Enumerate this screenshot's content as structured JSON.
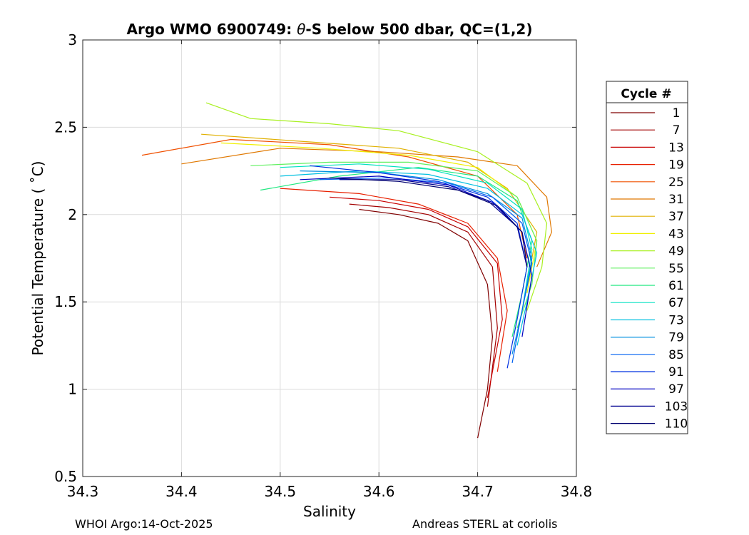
{
  "chart_data": {
    "type": "line",
    "title_prefix": "Argo WMO 6900749: ",
    "title_symbol": "θ",
    "title_suffix": "-S below 500 dbar,  QC=(1,2)",
    "xlabel": "Salinity",
    "ylabel": "Potential Temperature ( ˚C)",
    "xlim": [
      34.3,
      34.8
    ],
    "ylim": [
      0.5,
      3
    ],
    "xticks": [
      "34.3",
      "34.4",
      "34.5",
      "34.6",
      "34.7",
      "34.8"
    ],
    "yticks": [
      "0.5",
      "1",
      "1.5",
      "2",
      "2.5",
      "3"
    ],
    "grid": true,
    "legend": {
      "title": "Cycle #",
      "placement": "outside-right",
      "entries": [
        {
          "label": "1",
          "color": "#800000"
        },
        {
          "label": "7",
          "color": "#a30000"
        },
        {
          "label": "13",
          "color": "#c80000"
        },
        {
          "label": "19",
          "color": "#e82000"
        },
        {
          "label": "25",
          "color": "#f05000"
        },
        {
          "label": "31",
          "color": "#e07800"
        },
        {
          "label": "37",
          "color": "#e0b000"
        },
        {
          "label": "43",
          "color": "#f0f000"
        },
        {
          "label": "49",
          "color": "#a8f020"
        },
        {
          "label": "55",
          "color": "#60f060"
        },
        {
          "label": "61",
          "color": "#20e880"
        },
        {
          "label": "67",
          "color": "#00e0c0"
        },
        {
          "label": "73",
          "color": "#00c0e0"
        },
        {
          "label": "79",
          "color": "#0090e0"
        },
        {
          "label": "85",
          "color": "#0060f0"
        },
        {
          "label": "91",
          "color": "#0030e0"
        },
        {
          "label": "97",
          "color": "#0000c0"
        },
        {
          "label": "103",
          "color": "#000090"
        },
        {
          "label": "110",
          "color": "#000070"
        }
      ]
    },
    "series": [
      {
        "name": "1",
        "color": "#800000",
        "x": [
          34.58,
          34.62,
          34.66,
          34.69,
          34.71,
          34.715,
          34.71,
          34.7
        ],
        "y": [
          2.03,
          2.0,
          1.95,
          1.85,
          1.6,
          1.3,
          1.0,
          0.72
        ]
      },
      {
        "name": "7",
        "color": "#a30000",
        "x": [
          34.57,
          34.61,
          34.65,
          34.69,
          34.715,
          34.72,
          34.71
        ],
        "y": [
          2.06,
          2.04,
          2.0,
          1.9,
          1.7,
          1.35,
          0.9
        ]
      },
      {
        "name": "13",
        "color": "#c80000",
        "x": [
          34.55,
          34.6,
          34.65,
          34.69,
          34.72,
          34.725,
          34.71
        ],
        "y": [
          2.1,
          2.08,
          2.03,
          1.93,
          1.72,
          1.4,
          0.95
        ]
      },
      {
        "name": "19",
        "color": "#e82000",
        "x": [
          34.5,
          34.58,
          34.64,
          34.69,
          34.72,
          34.73,
          34.72
        ],
        "y": [
          2.15,
          2.12,
          2.06,
          1.95,
          1.75,
          1.45,
          1.1
        ]
      },
      {
        "name": "25",
        "color": "#f05000",
        "x": [
          34.36,
          34.45,
          34.55,
          34.63,
          34.7,
          34.74,
          34.75
        ],
        "y": [
          2.34,
          2.43,
          2.4,
          2.33,
          2.22,
          2.0,
          1.75
        ]
      },
      {
        "name": "31",
        "color": "#e07800",
        "x": [
          34.4,
          34.5,
          34.6,
          34.68,
          34.74,
          34.77,
          34.775,
          34.76
        ],
        "y": [
          2.29,
          2.38,
          2.36,
          2.33,
          2.28,
          2.1,
          1.9,
          1.7
        ]
      },
      {
        "name": "37",
        "color": "#e0b000",
        "x": [
          34.42,
          34.52,
          34.62,
          34.69,
          34.73,
          34.76,
          34.75
        ],
        "y": [
          2.46,
          2.42,
          2.38,
          2.3,
          2.15,
          1.9,
          1.6
        ]
      },
      {
        "name": "43",
        "color": "#f0f000",
        "x": [
          34.44,
          34.54,
          34.63,
          34.7,
          34.74,
          34.76,
          34.75
        ],
        "y": [
          2.41,
          2.38,
          2.34,
          2.27,
          2.1,
          1.85,
          1.55
        ]
      },
      {
        "name": "49",
        "color": "#a8f020",
        "x": [
          34.425,
          34.47,
          34.55,
          34.62,
          34.7,
          34.75,
          34.77,
          34.765,
          34.75
        ],
        "y": [
          2.64,
          2.55,
          2.52,
          2.48,
          2.36,
          2.18,
          1.95,
          1.7,
          1.45
        ]
      },
      {
        "name": "55",
        "color": "#60f060",
        "x": [
          34.47,
          34.55,
          34.63,
          34.7,
          34.74,
          34.76,
          34.755,
          34.74
        ],
        "y": [
          2.28,
          2.3,
          2.3,
          2.25,
          2.1,
          1.85,
          1.6,
          1.35
        ]
      },
      {
        "name": "61",
        "color": "#20e880",
        "x": [
          34.48,
          34.56,
          34.64,
          34.7,
          34.74,
          34.755,
          34.745,
          34.735
        ],
        "y": [
          2.14,
          2.22,
          2.27,
          2.22,
          2.08,
          1.85,
          1.55,
          1.3
        ]
      },
      {
        "name": "67",
        "color": "#00e0c0",
        "x": [
          34.5,
          34.58,
          34.65,
          34.71,
          34.745,
          34.755,
          34.745
        ],
        "y": [
          2.27,
          2.29,
          2.26,
          2.18,
          2.03,
          1.8,
          1.45
        ]
      },
      {
        "name": "73",
        "color": "#00c0e0",
        "x": [
          34.5,
          34.58,
          34.65,
          34.71,
          34.745,
          34.76,
          34.75,
          34.74
        ],
        "y": [
          2.22,
          2.25,
          2.23,
          2.15,
          2.0,
          1.78,
          1.5,
          1.25
        ]
      },
      {
        "name": "79",
        "color": "#0090e0",
        "x": [
          34.52,
          34.6,
          34.66,
          34.71,
          34.745,
          34.755,
          34.745,
          34.735
        ],
        "y": [
          2.25,
          2.24,
          2.2,
          2.12,
          1.98,
          1.75,
          1.45,
          1.2
        ]
      },
      {
        "name": "85",
        "color": "#0060f0",
        "x": [
          34.54,
          34.61,
          34.67,
          34.715,
          34.745,
          34.755,
          34.745,
          34.735
        ],
        "y": [
          2.2,
          2.21,
          2.18,
          2.1,
          1.95,
          1.72,
          1.45,
          1.15
        ]
      },
      {
        "name": "91",
        "color": "#0030e0",
        "x": [
          34.53,
          34.6,
          34.66,
          34.71,
          34.74,
          34.75,
          34.74,
          34.73
        ],
        "y": [
          2.28,
          2.24,
          2.19,
          2.1,
          1.95,
          1.7,
          1.4,
          1.12
        ]
      },
      {
        "name": "97",
        "color": "#0000c0",
        "x": [
          34.52,
          34.6,
          34.67,
          34.715,
          34.745,
          34.755,
          34.745
        ],
        "y": [
          2.2,
          2.22,
          2.17,
          2.07,
          1.9,
          1.65,
          1.3
        ]
      },
      {
        "name": "103",
        "color": "#000090",
        "x": [
          34.56,
          34.62,
          34.67,
          34.71,
          34.74,
          34.75
        ],
        "y": [
          2.2,
          2.2,
          2.16,
          2.08,
          1.93,
          1.7
        ]
      },
      {
        "name": "110",
        "color": "#000070",
        "x": [
          34.55,
          34.62,
          34.68,
          34.72,
          34.745,
          34.75
        ],
        "y": [
          2.21,
          2.19,
          2.14,
          2.05,
          1.9,
          1.7
        ]
      }
    ]
  },
  "footer": {
    "left": "WHOI Argo:14-Oct-2025",
    "right": "Andreas STERL at coriolis"
  }
}
